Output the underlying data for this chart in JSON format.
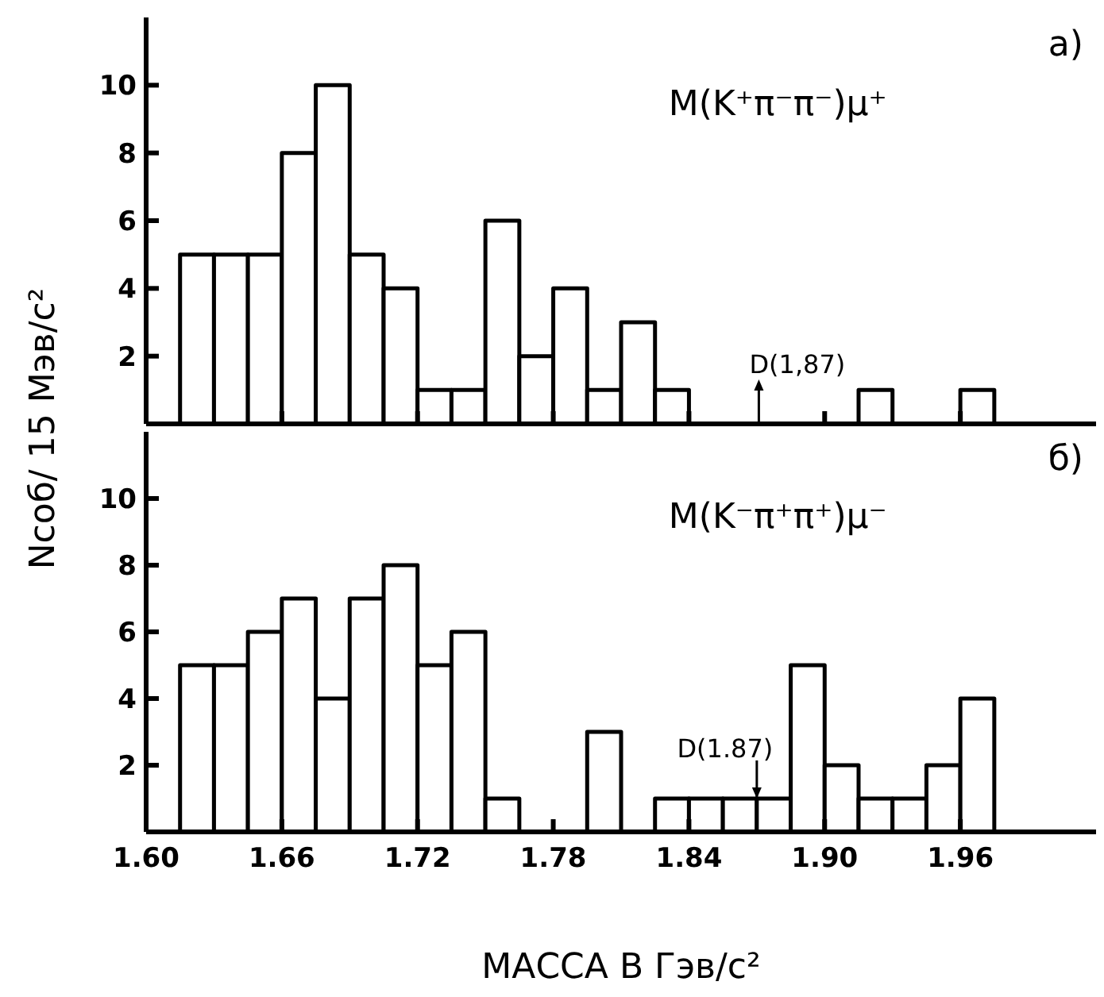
{
  "chart_data": [
    {
      "type": "histogram",
      "ylabel": "Nсоб/ 15 Мэв/с²",
      "tick_labels": "y",
      "color": "#000000",
      "bins": [
        1.615,
        1.63,
        1.645,
        1.66,
        1.675,
        1.69,
        1.705,
        1.72,
        1.735,
        1.75,
        1.765,
        1.78,
        1.795,
        1.81,
        1.825,
        1.84,
        1.855,
        1.87,
        1.885,
        1.9,
        1.915,
        1.93,
        1.945,
        1.96,
        1.975
      ],
      "values": [
        5,
        5,
        5,
        8,
        10,
        5,
        4,
        1,
        1,
        6,
        2,
        4,
        1,
        3,
        1,
        0,
        0,
        0,
        0,
        0,
        1,
        0,
        0,
        1
      ],
      "xlim": [
        1.6,
        2.02
      ],
      "xticks": [
        1.6,
        1.66,
        1.72,
        1.78,
        1.84,
        1.9,
        1.96
      ],
      "ylim": [
        0,
        12
      ],
      "yticks": [
        2,
        4,
        6,
        8,
        10
      ],
      "annotations": [
        "M(K⁺π⁻π⁻)μ⁺",
        "a)",
        "D(1,87)"
      ]
    },
    {
      "type": "histogram",
      "xlabel": "МАССА В Гэв/с²",
      "color": "#000000",
      "bins": [
        1.615,
        1.63,
        1.645,
        1.66,
        1.675,
        1.69,
        1.705,
        1.72,
        1.735,
        1.75,
        1.765,
        1.78,
        1.795,
        1.81,
        1.825,
        1.84,
        1.855,
        1.87,
        1.885,
        1.9,
        1.915,
        1.93,
        1.945,
        1.96,
        1.975
      ],
      "values": [
        5,
        5,
        6,
        7,
        4,
        7,
        8,
        5,
        6,
        1,
        0,
        0,
        3,
        0,
        1,
        1,
        1,
        1,
        5,
        2,
        1,
        1,
        2,
        4
      ],
      "xlim": [
        1.6,
        2.02
      ],
      "xticks": [
        {
          "value": 1.6,
          "label": "1.60"
        },
        {
          "value": 1.66,
          "label": "1.66"
        },
        {
          "value": 1.72,
          "label": "1.72"
        },
        {
          "value": 1.78,
          "label": "1.78"
        },
        {
          "value": 1.84,
          "label": "1.84"
        },
        {
          "value": 1.9,
          "label": "1.90"
        },
        {
          "value": 1.96,
          "label": "1.96"
        }
      ],
      "ylim": [
        0,
        12
      ],
      "yticks": [
        2,
        4,
        6,
        8,
        10
      ],
      "annotations": [
        "M(K⁻π⁺π⁺)μ⁻",
        "б)",
        {
          "text": "D(1.87)",
          "x": 1.87,
          "y": 1
        }
      ]
    }
  ]
}
